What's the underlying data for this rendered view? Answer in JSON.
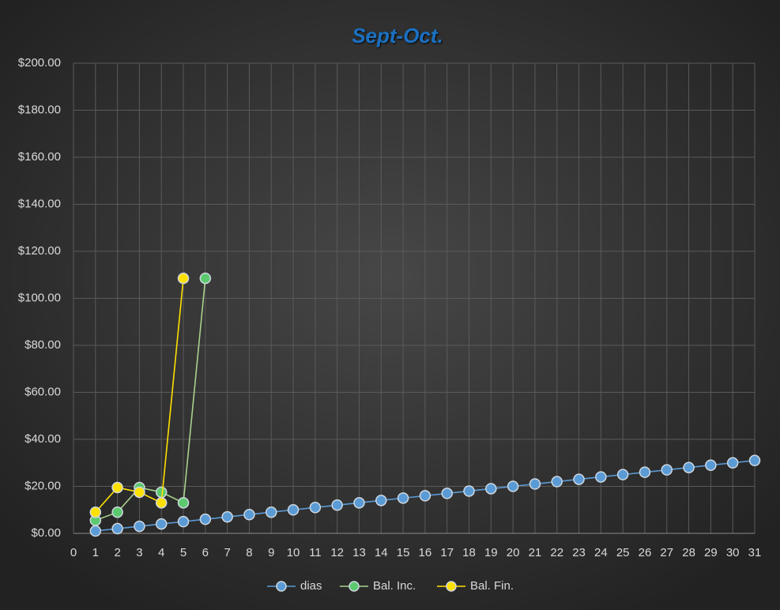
{
  "chart_data": {
    "type": "scatter-line",
    "title": "Sept-Oct.",
    "xlim": [
      0,
      31
    ],
    "xticks": [
      0,
      1,
      2,
      3,
      4,
      5,
      6,
      7,
      8,
      9,
      10,
      11,
      12,
      13,
      14,
      15,
      16,
      17,
      18,
      19,
      20,
      21,
      22,
      23,
      24,
      25,
      26,
      27,
      28,
      29,
      30,
      31
    ],
    "ylim": [
      0,
      200
    ],
    "yticks": [
      {
        "value": 0,
        "label": "$0.00"
      },
      {
        "value": 20,
        "label": "$20.00"
      },
      {
        "value": 40,
        "label": "$40.00"
      },
      {
        "value": 60,
        "label": "$60.00"
      },
      {
        "value": 80,
        "label": "$80.00"
      },
      {
        "value": 100,
        "label": "$100.00"
      },
      {
        "value": 120,
        "label": "$120.00"
      },
      {
        "value": 140,
        "label": "$140.00"
      },
      {
        "value": 160,
        "label": "$160.00"
      },
      {
        "value": 180,
        "label": "$180.00"
      },
      {
        "value": 200,
        "label": "$200.00"
      }
    ],
    "grid": true,
    "legend": "bottom",
    "series": [
      {
        "name": "dias",
        "color": "#5b9bd5",
        "x": [
          1,
          2,
          3,
          4,
          5,
          6,
          7,
          8,
          9,
          10,
          11,
          12,
          13,
          14,
          15,
          16,
          17,
          18,
          19,
          20,
          21,
          22,
          23,
          24,
          25,
          26,
          27,
          28,
          29,
          30,
          31
        ],
        "values": [
          1,
          2,
          3,
          4,
          5,
          6,
          7,
          8,
          9,
          10,
          11,
          12,
          13,
          14,
          15,
          16,
          17,
          18,
          19,
          20,
          21,
          22,
          23,
          24,
          25,
          26,
          27,
          28,
          29,
          30,
          31
        ]
      },
      {
        "name": "Bal. Inc.",
        "color": "#5cc96e",
        "x": [
          1,
          2,
          3,
          4,
          5,
          6
        ],
        "values": [
          5.5,
          9,
          19.5,
          17.5,
          13,
          108.5
        ]
      },
      {
        "name": "Bal. Fin.",
        "color": "#ffe100",
        "x": [
          1,
          2,
          3,
          4,
          5
        ],
        "values": [
          9,
          19.5,
          17.5,
          13,
          108.5
        ]
      }
    ]
  }
}
